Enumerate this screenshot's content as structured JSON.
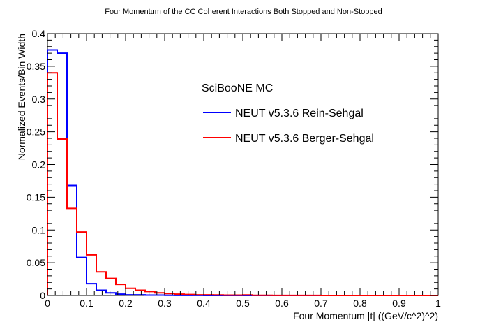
{
  "chart_data": {
    "type": "histogram",
    "title": "Four Momentum of the CC Coherent Interactions Both Stopped and Non-Stopped",
    "xlabel": "Four Momentum |t| ((GeV/c^2)^2)",
    "ylabel": "Normalized Events/Bin Width",
    "xlim": [
      0,
      1
    ],
    "ylim": [
      0,
      0.4
    ],
    "x_ticks": [
      "0",
      "0.1",
      "0.2",
      "0.3",
      "0.4",
      "0.5",
      "0.6",
      "0.7",
      "0.8",
      "0.9",
      "1"
    ],
    "y_ticks": [
      "0",
      "0.05",
      "0.1",
      "0.15",
      "0.2",
      "0.25",
      "0.3",
      "0.35",
      "0.4"
    ],
    "legend_title": "SciBooNE MC",
    "bin_edges": [
      0,
      0.025,
      0.05,
      0.075,
      0.1,
      0.125,
      0.15,
      0.175,
      0.2,
      0.225,
      0.25,
      0.275,
      0.3,
      0.325,
      0.35,
      0.375,
      0.4,
      0.425,
      0.45,
      0.475,
      0.5,
      0.525,
      0.55,
      0.575,
      0.6,
      0.625,
      0.65,
      0.675,
      0.7,
      0.725,
      0.75,
      0.775,
      0.8,
      0.825,
      0.85,
      0.875,
      0.9,
      0.925,
      0.95,
      0.975,
      1.0
    ],
    "series": [
      {
        "name": "NEUT v5.3.6 Rein-Sehgal",
        "color": "#0000ff",
        "values": [
          0.375,
          0.37,
          0.168,
          0.058,
          0.018,
          0.008,
          0.004,
          0.002,
          0.001,
          0.001,
          0.0005,
          0.0005,
          0.0003,
          0.0002,
          0.0001,
          0.0001,
          0,
          0,
          0,
          0,
          0,
          0,
          0,
          0,
          0,
          0,
          0,
          0,
          0,
          0,
          0,
          0,
          0,
          0,
          0,
          0,
          0,
          0,
          0,
          0
        ]
      },
      {
        "name": "NEUT v5.3.6 Berger-Sehgal",
        "color": "#ff0000",
        "values": [
          0.34,
          0.239,
          0.133,
          0.097,
          0.062,
          0.036,
          0.026,
          0.017,
          0.011,
          0.008,
          0.006,
          0.004,
          0.003,
          0.002,
          0.0015,
          0.001,
          0.001,
          0.0008,
          0.0005,
          0.0005,
          0.0008,
          0.0003,
          0.0003,
          0.0002,
          0.0002,
          0.0001,
          0.0001,
          0.0001,
          0,
          0,
          0,
          0,
          0,
          0,
          0,
          0,
          0,
          0,
          0,
          0
        ]
      }
    ]
  }
}
